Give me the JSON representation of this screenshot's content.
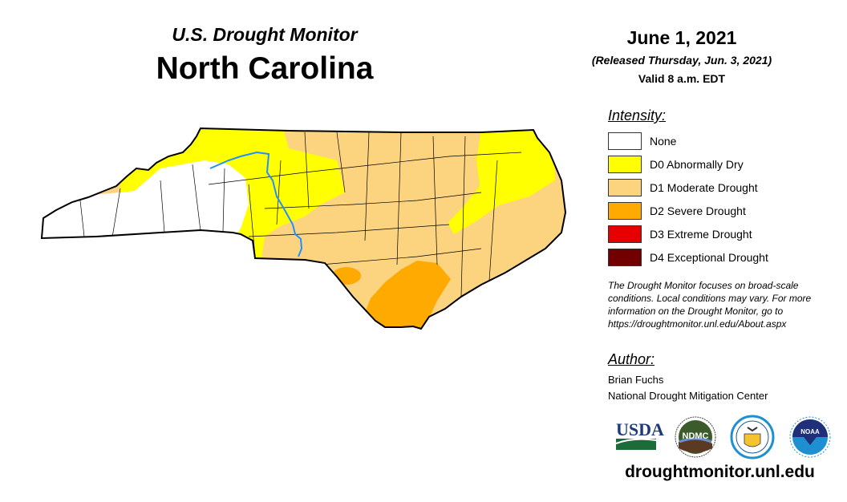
{
  "header": {
    "subtitle": "U.S. Drought Monitor",
    "title": "North Carolina"
  },
  "date": {
    "main": "June 1, 2021",
    "released": "(Released Thursday, Jun. 3, 2021)",
    "valid": "Valid 8 a.m. EDT"
  },
  "legend": {
    "title": "Intensity:",
    "items": [
      {
        "label": "None",
        "color": "#FFFFFF"
      },
      {
        "label": "D0 Abnormally Dry",
        "color": "#FFFF00"
      },
      {
        "label": "D1 Moderate Drought",
        "color": "#FCD37F"
      },
      {
        "label": "D2 Severe Drought",
        "color": "#FFAA00"
      },
      {
        "label": "D3 Extreme Drought",
        "color": "#E60000"
      },
      {
        "label": "D4 Exceptional Drought",
        "color": "#730000"
      }
    ]
  },
  "note": "The Drought Monitor focuses on broad-scale conditions. Local conditions may vary. For more information on the Drought Monitor, go to https://droughtmonitor.unl.edu/About.aspx",
  "author": {
    "title": "Author:",
    "name": "Brian Fuchs",
    "org": "National Drought Mitigation Center"
  },
  "logos": {
    "usda": "USDA",
    "ndmc": "NDMC",
    "noaa": "NOAA"
  },
  "url": "droughtmonitor.unl.edu",
  "river_color": "#1E90FF"
}
